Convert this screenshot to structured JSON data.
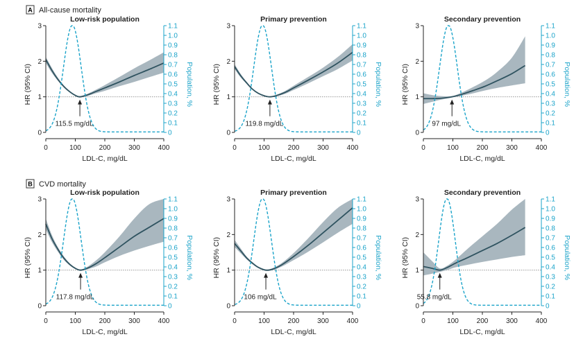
{
  "colors": {
    "hr_line": "#2f5360",
    "ci_band": "#a9b7bf",
    "population": "#1aa3c9",
    "axis": "#222222",
    "reference_line": "#888888"
  },
  "chart_data": [
    {
      "section": "A",
      "section_title": "All-cause mortality",
      "subgroup": "Low-risk population",
      "type": "line",
      "xlabel": "LDL-C, mg/dL",
      "ylabel": "HR (95% CI)",
      "y2label": "Population, %",
      "xlim": [
        0,
        400
      ],
      "ylim": [
        0,
        3
      ],
      "y2lim": [
        0,
        1.1
      ],
      "xticks": [
        "0",
        "100",
        "200",
        "300",
        "400"
      ],
      "yticks": [
        "0",
        "1",
        "2",
        "3"
      ],
      "y2ticks": [
        "0",
        "0.1",
        "0.2",
        "0.3",
        "0.4",
        "0.5",
        "0.6",
        "0.7",
        "0.8",
        "0.9",
        "1.0",
        "1.1"
      ],
      "nadir_ldl": 115.5,
      "annotation": "115.5 mg/dL",
      "population_peak": {
        "x": 90,
        "y": 1.1,
        "sd": 30
      },
      "series": [
        {
          "name": "HR",
          "x": [
            0,
            20,
            40,
            60,
            80,
            100,
            115.5,
            140,
            170,
            200,
            250,
            300,
            350,
            400
          ],
          "values": [
            2.05,
            1.75,
            1.5,
            1.3,
            1.15,
            1.04,
            1.0,
            1.05,
            1.15,
            1.25,
            1.42,
            1.6,
            1.77,
            1.95
          ]
        },
        {
          "name": "CI lower",
          "x": [
            0,
            20,
            40,
            60,
            80,
            100,
            115.5,
            140,
            170,
            200,
            250,
            300,
            350,
            400
          ],
          "values": [
            1.95,
            1.68,
            1.46,
            1.27,
            1.13,
            1.03,
            0.98,
            1.02,
            1.1,
            1.17,
            1.3,
            1.42,
            1.55,
            1.68
          ]
        },
        {
          "name": "CI upper",
          "x": [
            0,
            20,
            40,
            60,
            80,
            100,
            115.5,
            140,
            170,
            200,
            250,
            300,
            350,
            400
          ],
          "values": [
            2.12,
            1.82,
            1.55,
            1.33,
            1.17,
            1.06,
            1.02,
            1.08,
            1.2,
            1.33,
            1.56,
            1.8,
            2.02,
            2.25
          ]
        }
      ]
    },
    {
      "section": "A",
      "section_title": "All-cause mortality",
      "subgroup": "Primary prevention",
      "type": "line",
      "xlabel": "LDL-C, mg/dL",
      "ylabel": "HR (95% CI)",
      "y2label": "Population, %",
      "xlim": [
        0,
        400
      ],
      "ylim": [
        0,
        3
      ],
      "y2lim": [
        0,
        1.1
      ],
      "xticks": [
        "0",
        "100",
        "200",
        "300",
        "400"
      ],
      "yticks": [
        "0",
        "1",
        "2",
        "3"
      ],
      "y2ticks": [
        "0",
        "0.1",
        "0.2",
        "0.3",
        "0.4",
        "0.5",
        "0.6",
        "0.7",
        "0.8",
        "0.9",
        "1.0",
        "1.1"
      ],
      "nadir_ldl": 119.8,
      "annotation": "119.8 mg/dL",
      "population_peak": {
        "x": 95,
        "y": 1.1,
        "sd": 30
      },
      "series": [
        {
          "name": "HR",
          "x": [
            0,
            20,
            40,
            60,
            80,
            100,
            119.8,
            140,
            170,
            200,
            250,
            300,
            350,
            400
          ],
          "values": [
            1.85,
            1.6,
            1.4,
            1.22,
            1.1,
            1.03,
            1.0,
            1.03,
            1.12,
            1.25,
            1.47,
            1.7,
            1.95,
            2.25
          ]
        },
        {
          "name": "CI lower",
          "x": [
            0,
            20,
            40,
            60,
            80,
            100,
            119.8,
            140,
            170,
            200,
            250,
            300,
            350,
            400
          ],
          "values": [
            1.78,
            1.55,
            1.37,
            1.2,
            1.08,
            1.02,
            0.99,
            1.01,
            1.08,
            1.19,
            1.38,
            1.58,
            1.78,
            2.02
          ]
        },
        {
          "name": "CI upper",
          "x": [
            0,
            20,
            40,
            60,
            80,
            100,
            119.8,
            140,
            170,
            200,
            250,
            300,
            350,
            400
          ],
          "values": [
            1.92,
            1.65,
            1.43,
            1.24,
            1.12,
            1.04,
            1.01,
            1.05,
            1.16,
            1.31,
            1.56,
            1.82,
            2.12,
            2.48
          ]
        }
      ]
    },
    {
      "section": "A",
      "section_title": "All-cause mortality",
      "subgroup": "Secondary prevention",
      "type": "line",
      "xlabel": "LDL-C, mg/dL",
      "ylabel": "HR (95% CI)",
      "y2label": "Population, %",
      "xlim": [
        0,
        400
      ],
      "ylim": [
        0,
        3
      ],
      "y2lim": [
        0,
        1.1
      ],
      "xticks": [
        "0",
        "100",
        "200",
        "300",
        "400"
      ],
      "yticks": [
        "0",
        "1",
        "2",
        "3"
      ],
      "y2ticks": [
        "0",
        "0.1",
        "0.2",
        "0.3",
        "0.4",
        "0.5",
        "0.6",
        "0.7",
        "0.8",
        "0.9",
        "1.0",
        "1.1"
      ],
      "nadir_ldl": 97,
      "annotation": "97 mg/dL",
      "population_peak": {
        "x": 85,
        "y": 1.1,
        "sd": 30
      },
      "series": [
        {
          "name": "HR",
          "x": [
            0,
            30,
            60,
            97,
            130,
            170,
            210,
            250,
            300,
            345
          ],
          "values": [
            0.95,
            0.95,
            0.96,
            1.0,
            1.07,
            1.18,
            1.3,
            1.45,
            1.65,
            1.88
          ]
        },
        {
          "name": "CI lower",
          "x": [
            0,
            30,
            60,
            97,
            130,
            170,
            210,
            250,
            300,
            345
          ],
          "values": [
            0.8,
            0.86,
            0.92,
            0.98,
            1.03,
            1.1,
            1.18,
            1.25,
            1.32,
            1.38
          ]
        },
        {
          "name": "CI upper",
          "x": [
            0,
            30,
            60,
            97,
            130,
            170,
            210,
            250,
            300,
            345
          ],
          "values": [
            1.1,
            1.05,
            1.02,
            1.02,
            1.12,
            1.28,
            1.46,
            1.7,
            2.1,
            2.7
          ]
        }
      ]
    },
    {
      "section": "B",
      "section_title": "CVD mortality",
      "subgroup": "Low-risk population",
      "type": "line",
      "xlabel": "LDL-C, mg/dL",
      "ylabel": "HR (95% CI)",
      "y2label": "Population, %",
      "xlim": [
        0,
        400
      ],
      "ylim": [
        0,
        3
      ],
      "y2lim": [
        0,
        1.1
      ],
      "xticks": [
        "0",
        "100",
        "200",
        "300",
        "400"
      ],
      "yticks": [
        "0",
        "1",
        "2",
        "3"
      ],
      "y2ticks": [
        "0",
        "0.1",
        "0.2",
        "0.3",
        "0.4",
        "0.5",
        "0.6",
        "0.7",
        "0.8",
        "0.9",
        "1.0",
        "1.1"
      ],
      "nadir_ldl": 117.8,
      "annotation": "117.8 mg/dL",
      "population_peak": {
        "x": 90,
        "y": 1.1,
        "sd": 30
      },
      "series": [
        {
          "name": "HR",
          "x": [
            0,
            20,
            40,
            60,
            80,
            100,
            117.8,
            140,
            170,
            200,
            250,
            300,
            350,
            400
          ],
          "values": [
            2.3,
            1.9,
            1.6,
            1.35,
            1.17,
            1.05,
            1.0,
            1.05,
            1.18,
            1.35,
            1.65,
            1.95,
            2.2,
            2.45
          ]
        },
        {
          "name": "CI lower",
          "x": [
            0,
            20,
            40,
            60,
            80,
            100,
            117.8,
            140,
            170,
            200,
            250,
            300,
            350,
            400
          ],
          "values": [
            2.15,
            1.8,
            1.53,
            1.3,
            1.14,
            1.03,
            0.98,
            1.02,
            1.1,
            1.22,
            1.4,
            1.55,
            1.68,
            1.8
          ]
        },
        {
          "name": "CI upper",
          "x": [
            0,
            20,
            40,
            60,
            80,
            100,
            117.8,
            140,
            170,
            200,
            250,
            300,
            350,
            400
          ],
          "values": [
            2.45,
            2.0,
            1.66,
            1.4,
            1.2,
            1.07,
            1.02,
            1.09,
            1.27,
            1.5,
            1.95,
            2.45,
            2.85,
            3.0
          ]
        }
      ]
    },
    {
      "section": "B",
      "section_title": "CVD mortality",
      "subgroup": "Primary prevention",
      "type": "line",
      "xlabel": "LDL-C, mg/dL",
      "ylabel": "HR (95% CI)",
      "y2label": "Population, %",
      "xlim": [
        0,
        400
      ],
      "ylim": [
        0,
        3
      ],
      "y2lim": [
        0,
        1.1
      ],
      "xticks": [
        "0",
        "100",
        "200",
        "300",
        "400"
      ],
      "yticks": [
        "0",
        "1",
        "2",
        "3"
      ],
      "y2ticks": [
        "0",
        "0.1",
        "0.2",
        "0.3",
        "0.4",
        "0.5",
        "0.6",
        "0.7",
        "0.8",
        "0.9",
        "1.0",
        "1.1"
      ],
      "nadir_ldl": 106,
      "annotation": "106 mg/dL",
      "population_peak": {
        "x": 95,
        "y": 1.1,
        "sd": 30
      },
      "series": [
        {
          "name": "HR",
          "x": [
            0,
            20,
            40,
            60,
            80,
            106,
            130,
            160,
            200,
            250,
            300,
            350,
            400
          ],
          "values": [
            1.75,
            1.55,
            1.35,
            1.2,
            1.08,
            1.0,
            1.03,
            1.15,
            1.38,
            1.7,
            2.05,
            2.4,
            2.75
          ]
        },
        {
          "name": "CI lower",
          "x": [
            0,
            20,
            40,
            60,
            80,
            106,
            130,
            160,
            200,
            250,
            300,
            350,
            400
          ],
          "values": [
            1.65,
            1.48,
            1.31,
            1.17,
            1.06,
            0.98,
            1.0,
            1.1,
            1.28,
            1.52,
            1.78,
            2.05,
            2.3
          ]
        },
        {
          "name": "CI upper",
          "x": [
            0,
            20,
            40,
            60,
            80,
            106,
            130,
            160,
            200,
            250,
            300,
            350,
            400
          ],
          "values": [
            1.85,
            1.62,
            1.39,
            1.23,
            1.1,
            1.02,
            1.06,
            1.2,
            1.48,
            1.9,
            2.35,
            2.75,
            3.0
          ]
        }
      ]
    },
    {
      "section": "B",
      "section_title": "CVD mortality",
      "subgroup": "Secondary prevention",
      "type": "line",
      "xlabel": "LDL-C, mg/dL",
      "ylabel": "HR (95% CI)",
      "y2label": "Population, %",
      "xlim": [
        0,
        400
      ],
      "ylim": [
        0,
        3
      ],
      "y2lim": [
        0,
        1.1
      ],
      "xticks": [
        "0",
        "100",
        "200",
        "300",
        "400"
      ],
      "yticks": [
        "0",
        "1",
        "2",
        "3"
      ],
      "y2ticks": [
        "0",
        "0.1",
        "0.2",
        "0.3",
        "0.4",
        "0.5",
        "0.6",
        "0.7",
        "0.8",
        "0.9",
        "1.0",
        "1.1"
      ],
      "nadir_ldl": 55.8,
      "annotation": "55.8 mg/dL",
      "population_peak": {
        "x": 80,
        "y": 1.1,
        "sd": 28
      },
      "series": [
        {
          "name": "HR",
          "x": [
            0,
            30,
            55.8,
            80,
            110,
            150,
            200,
            250,
            300,
            345
          ],
          "values": [
            1.1,
            1.05,
            1.0,
            1.07,
            1.2,
            1.35,
            1.55,
            1.75,
            1.98,
            2.2
          ]
        },
        {
          "name": "CI lower",
          "x": [
            0,
            30,
            55.8,
            80,
            110,
            150,
            200,
            250,
            300,
            345
          ],
          "values": [
            0.85,
            0.9,
            0.95,
            1.0,
            1.08,
            1.15,
            1.23,
            1.3,
            1.37,
            1.42
          ]
        },
        {
          "name": "CI upper",
          "x": [
            0,
            30,
            55.8,
            80,
            110,
            150,
            200,
            250,
            300,
            345
          ],
          "values": [
            1.5,
            1.25,
            1.05,
            1.12,
            1.3,
            1.6,
            1.95,
            2.3,
            2.7,
            3.0
          ]
        }
      ]
    }
  ]
}
